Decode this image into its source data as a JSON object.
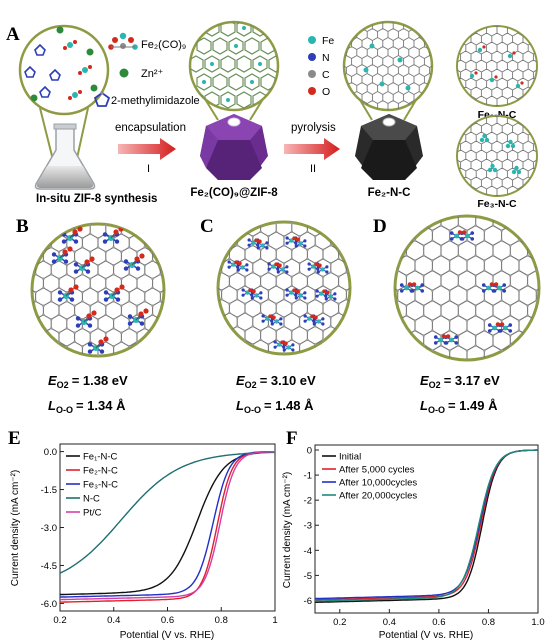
{
  "panel_a": {
    "letter": "A",
    "legend_fe": "Fe",
    "legend_n": "N",
    "legend_c": "C",
    "legend_o": "O",
    "fe2co9": "Fe₂(CO)₉",
    "zn": "Zn²⁺",
    "mim": "2-methylimidazole",
    "step1_label": "encapsulation",
    "step1_num": "I",
    "step2_label": "pyrolysis",
    "step2_num": "II",
    "caption1": "In-situ ZIF-8 synthesis",
    "caption2": "Fe₂(CO)₉@ZIF-8",
    "caption3": "Fe₂-N-C",
    "fe1_label": "Fe₁-N-C",
    "fe3_label": "Fe₃-N-C"
  },
  "panel_b": {
    "letter": "B",
    "e_val": "= 1.38 eV",
    "l_val": "= 1.34 Å"
  },
  "panel_c": {
    "letter": "C",
    "e_val": "= 3.10 eV",
    "l_val": "= 1.48 Å"
  },
  "panel_d": {
    "letter": "D",
    "e_val": "= 3.17 eV",
    "l_val": "= 1.49 Å"
  },
  "energy_symbol": "E",
  "energy_sub": "O2",
  "length_symbol": "L",
  "length_sub": "O-O",
  "colors": {
    "fe": "#2ab5b0",
    "n": "#2c3fb8",
    "c": "#8a8a8a",
    "o": "#d42a1c",
    "ring": "#7d8a3c"
  },
  "panel_e": {
    "letter": "E",
    "chart_data": {
      "type": "line",
      "xlabel": "Potential (V vs. RHE)",
      "ylabel": "Current density (mA cm⁻²)",
      "xlim": [
        0.2,
        1.0
      ],
      "ylim": [
        -6.3,
        0.3
      ],
      "xticks": [
        0.2,
        0.4,
        0.6,
        0.8,
        1.0
      ],
      "xtick_labels": [
        "0.2",
        "0.4",
        "0.6",
        "0.8",
        "1"
      ],
      "yticks": [
        0.0,
        -1.5,
        -3.0,
        -4.5,
        -6.0
      ],
      "ytick_labels": [
        "0.0",
        "-1.5",
        "-3.0",
        "-4.5",
        "-6.0"
      ],
      "legend_position": "top-left",
      "series": [
        {
          "name": "Fe₁-N-C",
          "color": "#111111",
          "limit": -5.45,
          "e_half": 0.71,
          "width": 0.05
        },
        {
          "name": "Fe₂-N-C",
          "color": "#e0202e",
          "limit": -5.75,
          "e_half": 0.785,
          "width": 0.028
        },
        {
          "name": "Fe₃-N-C",
          "color": "#2030c8",
          "limit": -5.55,
          "e_half": 0.77,
          "width": 0.03
        },
        {
          "name": "N-C",
          "color": "#1f6f72",
          "limit": -5.2,
          "e_half": 0.43,
          "width": 0.11
        },
        {
          "name": "Pt/C",
          "color": "#d33fa6",
          "limit": -5.65,
          "e_half": 0.795,
          "width": 0.028
        }
      ]
    }
  },
  "panel_f": {
    "letter": "F",
    "chart_data": {
      "type": "line",
      "xlabel": "Potential (V vs. RHE)",
      "ylabel": "Current density (mA cm⁻²)",
      "xlim": [
        0.1,
        1.0
      ],
      "ylim": [
        -6.5,
        0.2
      ],
      "xticks": [
        0.2,
        0.4,
        0.6,
        0.8,
        1.0
      ],
      "xtick_labels": [
        "0.2",
        "0.4",
        "0.6",
        "0.8",
        "1.0"
      ],
      "yticks": [
        0,
        -1,
        -2,
        -3,
        -4,
        -5,
        -6
      ],
      "ytick_labels": [
        "0",
        "-1",
        "-2",
        "-3",
        "-4",
        "-5",
        "-6"
      ],
      "legend_position": "top-left",
      "series": [
        {
          "name": "Initial",
          "color": "#111111",
          "limit": -5.85,
          "e_half": 0.775,
          "width": 0.03
        },
        {
          "name": "After 5,000 cycles",
          "color": "#e0202e",
          "limit": -5.75,
          "e_half": 0.77,
          "width": 0.031
        },
        {
          "name": "After 10,000cycles",
          "color": "#2030c8",
          "limit": -5.7,
          "e_half": 0.766,
          "width": 0.032
        },
        {
          "name": "After 20,000cycles",
          "color": "#1f8a7a",
          "limit": -5.8,
          "e_half": 0.762,
          "width": 0.033
        }
      ]
    }
  }
}
